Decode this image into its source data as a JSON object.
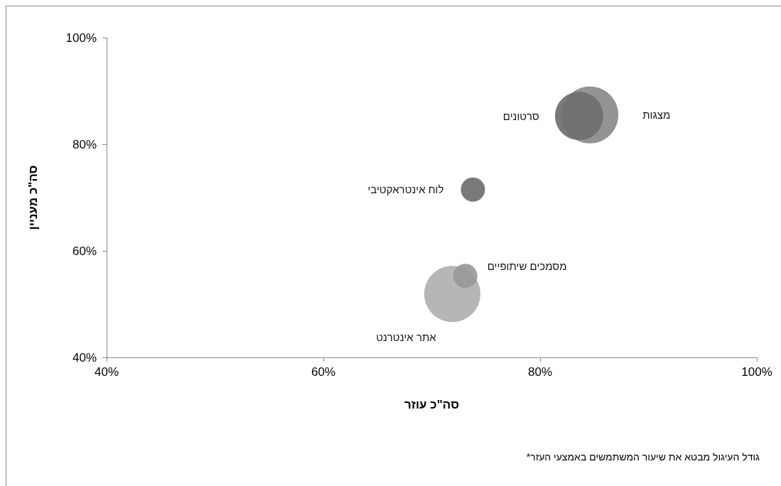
{
  "chart_data": {
    "type": "bubble",
    "xlabel": "סה\"כ עוזר",
    "ylabel": "סה\"כ מעניין",
    "xlim": [
      40,
      100
    ],
    "xticks": [
      {
        "value": 40,
        "label": "40%"
      },
      {
        "value": 60,
        "label": "60%"
      },
      {
        "value": 80,
        "label": "80%"
      },
      {
        "value": 100,
        "label": "100%"
      }
    ],
    "ylim": [
      40,
      100
    ],
    "yticks": [
      {
        "value": 40,
        "label": "40%"
      },
      {
        "value": 60,
        "label": "60%"
      },
      {
        "value": 80,
        "label": "80%"
      },
      {
        "value": 100,
        "label": "100%"
      }
    ],
    "grid": false,
    "legend": false,
    "marker": "circle",
    "annotations": [
      "*גודל העיגול מבטא את שיעור המשתמשים באמצעי העזר"
    ],
    "series": [
      {
        "name": "אתר אינטרנט",
        "color": "#b0b0b0",
        "x": [
          71.9
        ],
        "values": [
          51.9
        ],
        "sizes": [
          0.98
        ]
      },
      {
        "name": "מסמכים שיתופיים",
        "color": "#999999",
        "x": [
          73.1
        ],
        "values": [
          55.3
        ],
        "sizes": [
          0.18
        ]
      },
      {
        "name": "מצגות",
        "color": "#8a8a8a",
        "x": [
          84.6
        ],
        "values": [
          85.5
        ],
        "sizes": [
          1
        ]
      },
      {
        "name": "סרטונים",
        "color": "#6e6e6e",
        "x": [
          83.6
        ],
        "values": [
          85.3
        ],
        "sizes": [
          0.72
        ]
      },
      {
        "name": "לוח אינטראקטיבי",
        "color": "#6e6e6e",
        "x": [
          73.8
        ],
        "values": [
          71.5
        ],
        "sizes": [
          0.18
        ]
      }
    ]
  }
}
